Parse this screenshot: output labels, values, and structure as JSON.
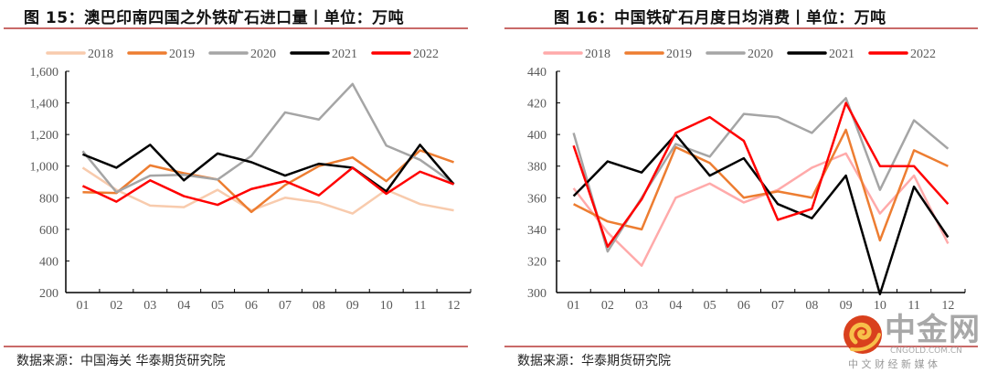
{
  "colors": {
    "2018": "#f8cbad",
    "2019": "#ed7d31",
    "2020": "#a5a5a5",
    "2021": "#000000",
    "2022": "#ff0000",
    "2018_right": "#ffaaaa",
    "rule": "#c0504d"
  },
  "left": {
    "title": "图 15：澳巴印南四国之外铁矿石进口量丨单位：万吨",
    "source": "数据来源：中国海关  华泰期货研究院"
  },
  "right": {
    "title": "图 16：中国铁矿石月度日均消费丨单位：万吨",
    "source": "数据来源：华泰期货研究院"
  },
  "watermark": {
    "name": "中金网",
    "domain": "CNGOLD.COM.CN",
    "slogan": "中 文 财 经 新 媒 体"
  },
  "chart_data": [
    {
      "type": "line",
      "title": "图 15：澳巴印南四国之外铁矿石进口量丨单位：万吨",
      "categories": [
        "01",
        "02",
        "03",
        "04",
        "05",
        "06",
        "07",
        "08",
        "09",
        "10",
        "11",
        "12"
      ],
      "ylim": [
        200,
        1600
      ],
      "yticks": [
        "200",
        "400",
        "600",
        "800",
        "1,000",
        "1,200",
        "1,400",
        "1,600"
      ],
      "ytick_values": [
        200,
        400,
        600,
        800,
        1000,
        1200,
        1400,
        1600
      ],
      "legend": "top",
      "grid": false,
      "series": [
        {
          "name": "2018",
          "values": [
            990,
            850,
            750,
            740,
            850,
            720,
            800,
            770,
            700,
            850,
            760,
            720
          ]
        },
        {
          "name": "2019",
          "values": [
            835,
            830,
            1005,
            955,
            915,
            710,
            880,
            1000,
            1055,
            905,
            1100,
            1025
          ]
        },
        {
          "name": "2020",
          "values": [
            1095,
            835,
            940,
            945,
            915,
            1065,
            1340,
            1295,
            1520,
            1130,
            1040,
            890
          ]
        },
        {
          "name": "2021",
          "values": [
            1075,
            990,
            1135,
            910,
            1080,
            1025,
            940,
            1015,
            990,
            840,
            1135,
            885
          ]
        },
        {
          "name": "2022",
          "values": [
            875,
            775,
            910,
            810,
            755,
            855,
            905,
            815,
            990,
            825,
            965,
            885
          ]
        }
      ]
    },
    {
      "type": "line",
      "title": "图 16：中国铁矿石月度日均消费丨单位：万吨",
      "categories": [
        "01",
        "02",
        "03",
        "04",
        "05",
        "06",
        "07",
        "08",
        "09",
        "10",
        "11",
        "12"
      ],
      "ylim": [
        300,
        440
      ],
      "yticks": [
        "300",
        "320",
        "340",
        "360",
        "380",
        "400",
        "420",
        "440"
      ],
      "ytick_values": [
        300,
        320,
        340,
        360,
        380,
        400,
        420,
        440
      ],
      "legend": "top",
      "grid": false,
      "series": [
        {
          "name": "2018",
          "values": [
            366,
            338,
            317,
            360,
            369,
            357,
            365,
            379,
            388,
            350,
            374,
            331
          ]
        },
        {
          "name": "2019",
          "values": [
            356,
            345,
            340,
            392,
            382,
            360,
            364,
            360,
            403,
            333,
            390,
            380
          ]
        },
        {
          "name": "2020",
          "values": [
            401,
            326,
            360,
            394,
            386,
            413,
            411,
            401,
            423,
            365,
            409,
            391
          ]
        },
        {
          "name": "2021",
          "values": [
            361,
            383,
            376,
            400,
            374,
            385,
            356,
            347,
            374,
            299,
            367,
            335
          ]
        },
        {
          "name": "2022",
          "values": [
            393,
            329,
            359,
            401,
            411,
            396,
            346,
            353,
            420,
            380,
            380,
            356
          ]
        }
      ]
    }
  ]
}
